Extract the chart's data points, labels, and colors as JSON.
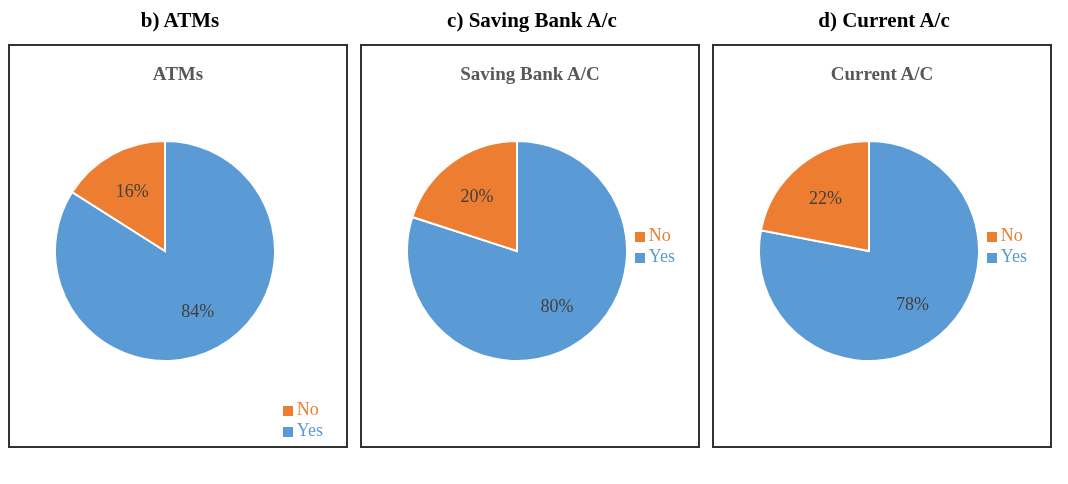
{
  "chart_data": [
    {
      "type": "pie",
      "title": "b)  ATMs",
      "subtitle": "ATMs",
      "categories": [
        "Yes",
        "No"
      ],
      "values": [
        84,
        16
      ],
      "colors": [
        "#5b9bd5",
        "#ed7d31"
      ],
      "value_labels": [
        "84%",
        "16%"
      ],
      "legend": "bottom right"
    },
    {
      "type": "pie",
      "title": "c) Saving Bank A/c",
      "subtitle": "Saving Bank A/C",
      "categories": [
        "Yes",
        "No"
      ],
      "values": [
        80,
        20
      ],
      "colors": [
        "#5b9bd5",
        "#ed7d31"
      ],
      "value_labels": [
        "80%",
        "20%"
      ],
      "legend": "right"
    },
    {
      "type": "pie",
      "title": "d) Current A/c",
      "subtitle": "Current A/C",
      "categories": [
        "Yes",
        "No"
      ],
      "values": [
        78,
        22
      ],
      "colors": [
        "#5b9bd5",
        "#ed7d31"
      ],
      "value_labels": [
        "78%",
        "22%"
      ],
      "legend": "right"
    }
  ]
}
